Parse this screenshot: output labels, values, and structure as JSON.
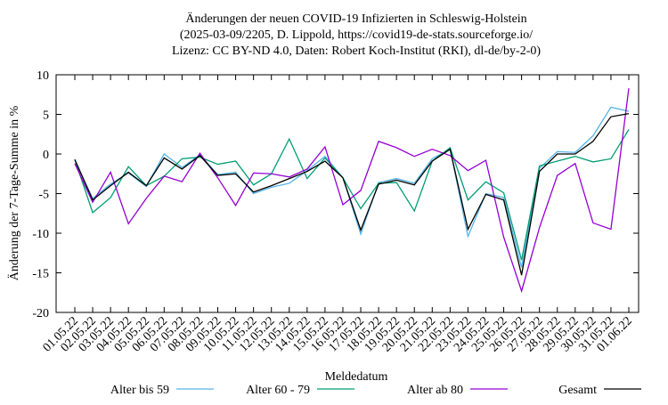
{
  "chart_data": {
    "type": "line",
    "title": [
      "Änderungen der neuen COVID-19 Infizierten in Schleswig-Holstein",
      "(2025-03-09/2205, D. Lippold, https://covid19-de-stats.sourceforge.io/",
      "Lizenz: CC BY-ND 4.0, Daten: Robert Koch-Institut (RKI), dl-de/by-2-0)"
    ],
    "x_label": "Meldedatum",
    "y_label": "Änderung der 7-Tage-Summe in %",
    "categories": [
      "01.05.22",
      "02.05.22",
      "03.05.22",
      "04.05.22",
      "05.05.22",
      "06.05.22",
      "07.05.22",
      "08.05.22",
      "09.05.22",
      "10.05.22",
      "11.05.22",
      "12.05.22",
      "13.05.22",
      "14.05.22",
      "15.05.22",
      "16.05.22",
      "17.05.22",
      "18.05.22",
      "19.05.22",
      "20.05.22",
      "21.05.22",
      "22.05.22",
      "23.05.22",
      "24.05.22",
      "25.05.22",
      "26.05.22",
      "27.05.22",
      "28.05.22",
      "29.05.22",
      "30.05.22",
      "31.05.22",
      "01.06.22"
    ],
    "series": [
      {
        "name": "Alter bis 59",
        "color": "#56b4e9",
        "values": [
          -0.8,
          -5.6,
          -3.8,
          -2.4,
          -4.1,
          0.0,
          -1.7,
          -0.1,
          -2.6,
          -2.3,
          -5.0,
          -4.2,
          -3.7,
          -2.1,
          -0.3,
          -3.0,
          -10.1,
          -3.6,
          -3.1,
          -3.7,
          -0.6,
          0.6,
          -10.4,
          -5.0,
          -5.5,
          -14.3,
          -1.8,
          0.3,
          0.2,
          2.3,
          5.9,
          5.4
        ]
      },
      {
        "name": "Alter 60 - 79",
        "color": "#009e73",
        "values": [
          -0.7,
          -7.4,
          -5.5,
          -1.6,
          -4.0,
          -2.8,
          -0.6,
          -0.4,
          -1.3,
          -0.9,
          -3.9,
          -2.5,
          1.9,
          -3.1,
          -0.5,
          -3.0,
          -6.9,
          -3.7,
          -3.6,
          -7.2,
          -0.9,
          0.8,
          -5.8,
          -3.5,
          -4.9,
          -13.4,
          -1.5,
          -0.9,
          -0.3,
          -1.0,
          -0.6,
          3.1
        ]
      },
      {
        "name": "Alter ab 80",
        "color": "#9400d3",
        "values": [
          -1.2,
          -6.1,
          -2.3,
          -8.8,
          -5.6,
          -2.8,
          -3.5,
          0.1,
          -3.0,
          -6.5,
          -2.4,
          -2.5,
          -2.9,
          -1.9,
          0.9,
          -6.4,
          -4.6,
          1.6,
          0.8,
          -0.3,
          0.6,
          -0.2,
          -2.1,
          -0.8,
          -10.5,
          -17.3,
          -9.3,
          -2.7,
          -1.2,
          -8.7,
          -9.5,
          8.3
        ]
      },
      {
        "name": "Gesamt",
        "color": "#000000",
        "values": [
          -0.7,
          -5.8,
          -4.0,
          -2.3,
          -4.0,
          -0.5,
          -1.9,
          -0.2,
          -2.7,
          -2.5,
          -4.8,
          -4.0,
          -3.1,
          -2.2,
          -0.9,
          -3.0,
          -9.6,
          -3.8,
          -3.3,
          -3.9,
          -0.9,
          0.6,
          -9.5,
          -5.1,
          -5.8,
          -15.3,
          -2.2,
          0.0,
          0.0,
          1.6,
          4.7,
          5.1
        ]
      }
    ],
    "ylim": [
      -20,
      10
    ],
    "yticks": [
      -20,
      -15,
      -10,
      -5,
      0,
      5,
      10
    ],
    "grid": false
  }
}
